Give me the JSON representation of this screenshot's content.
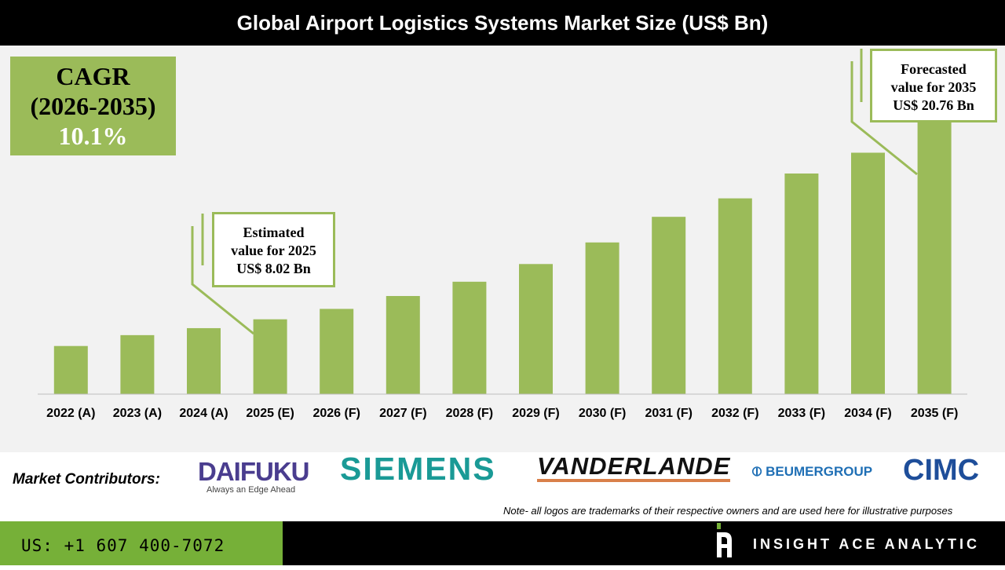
{
  "title": "Global Airport Logistics Systems Market Size (US$ Bn)",
  "cagr": {
    "label": "CAGR",
    "period": "(2026-2035)",
    "value": "10.1%"
  },
  "callouts": {
    "estimated": [
      "Estimated",
      "value for 2025",
      "US$ 8.02 Bn"
    ],
    "forecast": [
      "Forecasted",
      "value for 2035",
      "US$ 20.76 Bn"
    ]
  },
  "colors": {
    "bar": "#9bbb59",
    "accent": "#76b038",
    "title_bg": "#000000"
  },
  "chart_data": {
    "type": "bar",
    "title": "Global Airport Logistics Systems Market Size (US$ Bn)",
    "categories": [
      "2022 (A)",
      "2023 (A)",
      "2024 (A)",
      "2025 (E)",
      "2026 (F)",
      "2027 (F)",
      "2028 (F)",
      "2029 (F)",
      "2030 (F)",
      "2031 (F)",
      "2032 (F)",
      "2033 (F)",
      "2034 (F)",
      "2035 (F)"
    ],
    "values": [
      6.3,
      7.0,
      7.45,
      8.02,
      8.69,
      9.52,
      10.44,
      11.58,
      12.97,
      14.62,
      15.81,
      17.41,
      18.75,
      20.76
    ],
    "xlabel": "",
    "ylabel": "",
    "grid": false,
    "ylim": [
      3.2,
      21
    ]
  },
  "contributors": {
    "label": "Market Contributors:",
    "logos": [
      "DAIFUKU",
      "Always an Edge Ahead",
      "SIEMENS",
      "VANDERLANDE",
      "BEUMERGROUP",
      "CIMC"
    ]
  },
  "note": "Note- all logos are trademarks of their respective owners and are used here for illustrative purposes",
  "footer": {
    "phone": "US: +1 607 400-7072",
    "brand": "INSIGHT ACE ANALYTIC"
  }
}
